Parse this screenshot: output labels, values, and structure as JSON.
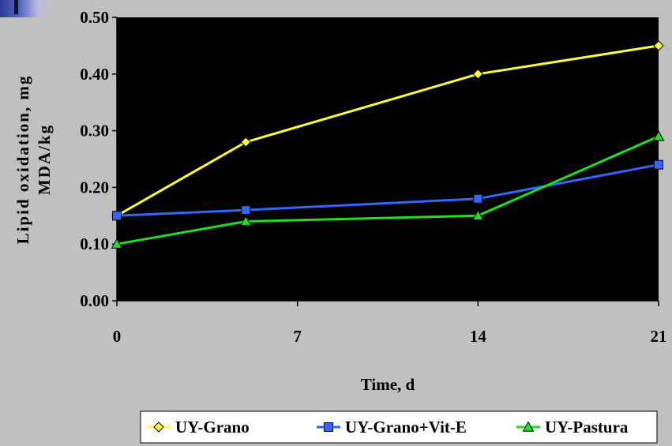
{
  "chart_data": {
    "type": "line",
    "title": "",
    "xlabel": "Time, d",
    "ylabel_line1": "Lipid oxidation, mg",
    "ylabel_line2": "MDA/kg",
    "xlim": [
      0,
      21
    ],
    "ylim": [
      0,
      0.5
    ],
    "x_ticks": [
      0,
      7,
      14,
      21
    ],
    "x_tick_labels": [
      "0",
      "7",
      "14",
      "21"
    ],
    "y_ticks": [
      0,
      0.1,
      0.2,
      0.3,
      0.4,
      0.5
    ],
    "y_tick_labels": [
      "0.00",
      "0.10",
      "0.20",
      "0.30",
      "0.40",
      "0.50"
    ],
    "grid": false,
    "plot_background": "#000000",
    "legend_position": "bottom",
    "series": [
      {
        "name": "UY-Grano",
        "color": "#ffff33",
        "marker": "diamond",
        "x": [
          0,
          5,
          14,
          21
        ],
        "y": [
          0.15,
          0.28,
          0.4,
          0.45
        ]
      },
      {
        "name": "UY-Grano+Vit-E",
        "color": "#3366ff",
        "marker": "square",
        "x": [
          0,
          5,
          14,
          21
        ],
        "y": [
          0.15,
          0.16,
          0.18,
          0.24
        ]
      },
      {
        "name": "UY-Pastura",
        "color": "#22dd22",
        "marker": "triangle",
        "x": [
          0,
          5,
          14,
          21
        ],
        "y": [
          0.1,
          0.14,
          0.15,
          0.29
        ]
      }
    ]
  }
}
